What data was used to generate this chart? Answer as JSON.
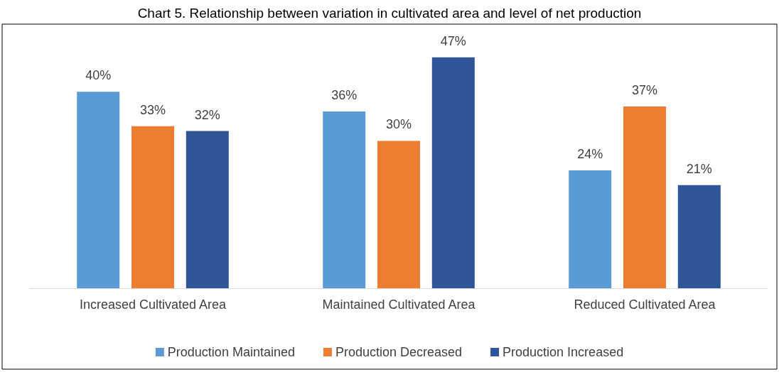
{
  "chart_data": {
    "type": "bar",
    "title": "Chart 5. Relationship between variation in cultivated area and level of net production",
    "categories": [
      "Increased Cultivated Area",
      "Maintained Cultivated Area",
      "Reduced Cultivated Area"
    ],
    "series": [
      {
        "name": "Production Maintained",
        "color": "#5b9bd5",
        "values": [
          40,
          36,
          24
        ],
        "value_labels": [
          "40%",
          "36%",
          "24%"
        ]
      },
      {
        "name": "Production Decreased",
        "color": "#ed7d31",
        "values": [
          33,
          30,
          37
        ],
        "value_labels": [
          "33%",
          "30%",
          "37%"
        ]
      },
      {
        "name": "Production Increased",
        "color": "#2f5597",
        "values": [
          32,
          47,
          21
        ],
        "value_labels": [
          "32%",
          "47%",
          "21%"
        ]
      }
    ],
    "legend": "bottom"
  }
}
